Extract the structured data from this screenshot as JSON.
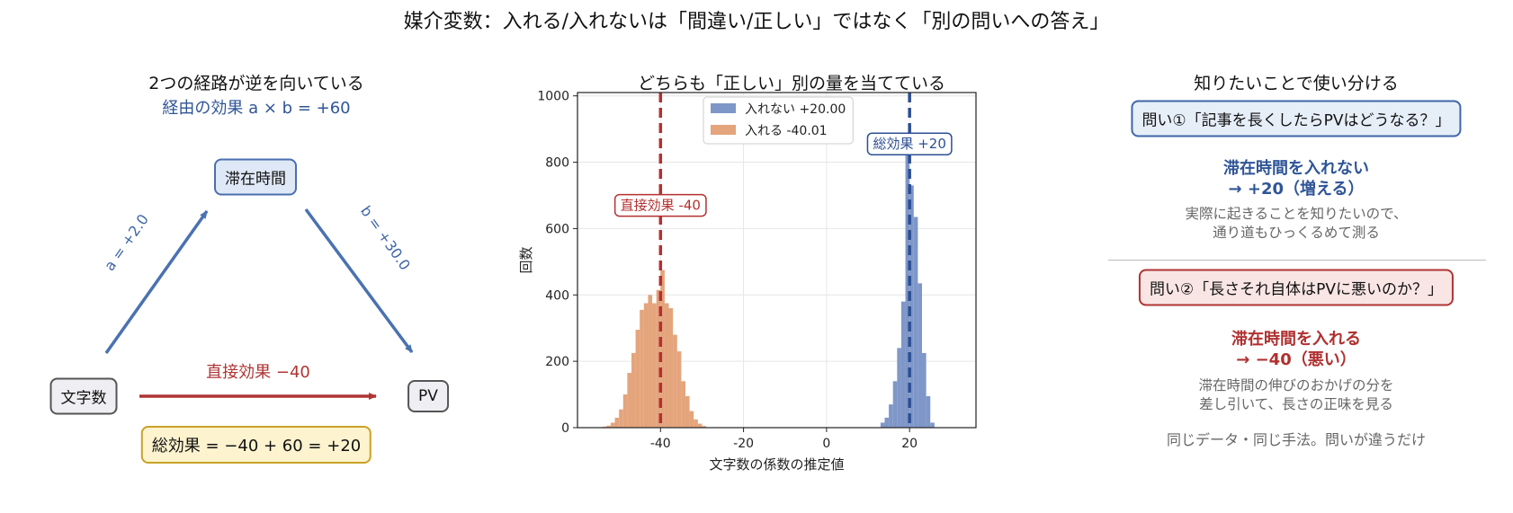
{
  "title": "媒介変数：入れる/入れないは「間違い/正しい」ではなく「別の問いへの答え」",
  "left": {
    "title": "2つの経路が逆を向いている",
    "subtitle": "経由の効果 a × b = +60",
    "node_mediator": "滞在時間",
    "node_x": "文字数",
    "node_y": "PV",
    "path_a": "a = +2.0",
    "path_b": "b = +30.0",
    "direct": "直接効果 −40",
    "total": "総効果 = −40 + 60 = +20",
    "colors": {
      "path": "#4a72b0",
      "direct": "#b03434"
    }
  },
  "chart_data": {
    "type": "histogram",
    "title": "どちらも「正しい」別の量を当てている",
    "xlabel": "文字数の係数の推定値",
    "ylabel": "回数",
    "xlim": [
      -60,
      36
    ],
    "ylim": [
      0,
      1010
    ],
    "xticks": [
      -40,
      -20,
      0,
      20
    ],
    "yticks": [
      0,
      200,
      400,
      600,
      800,
      1000
    ],
    "grid": true,
    "legend_position": "top-center",
    "bin_width": 1,
    "series": [
      {
        "name": "入れない  +20.00",
        "color": "#7f97c8",
        "bins": [
          {
            "x0": 13,
            "count": 15
          },
          {
            "x0": 14,
            "count": 30
          },
          {
            "x0": 15,
            "count": 70
          },
          {
            "x0": 16,
            "count": 140
          },
          {
            "x0": 17,
            "count": 240
          },
          {
            "x0": 18,
            "count": 380
          },
          {
            "x0": 19,
            "count": 865
          },
          {
            "x0": 20,
            "count": 730
          },
          {
            "x0": 21,
            "count": 635
          },
          {
            "x0": 22,
            "count": 435
          },
          {
            "x0": 23,
            "count": 225
          },
          {
            "x0": 24,
            "count": 95
          },
          {
            "x0": 25,
            "count": 15
          }
        ]
      },
      {
        "name": "入れる   -40.01",
        "color": "#e4a47c",
        "bins": [
          {
            "x0": -54,
            "count": 3
          },
          {
            "x0": -53,
            "count": 6
          },
          {
            "x0": -52,
            "count": 15
          },
          {
            "x0": -51,
            "count": 30
          },
          {
            "x0": -50,
            "count": 55
          },
          {
            "x0": -49,
            "count": 100
          },
          {
            "x0": -48,
            "count": 165
          },
          {
            "x0": -47,
            "count": 225
          },
          {
            "x0": -46,
            "count": 295
          },
          {
            "x0": -45,
            "count": 355
          },
          {
            "x0": -44,
            "count": 375
          },
          {
            "x0": -43,
            "count": 400
          },
          {
            "x0": -42,
            "count": 375
          },
          {
            "x0": -41,
            "count": 415
          },
          {
            "x0": -40,
            "count": 475
          },
          {
            "x0": -39,
            "count": 375
          },
          {
            "x0": -38,
            "count": 360
          },
          {
            "x0": -37,
            "count": 280
          },
          {
            "x0": -36,
            "count": 230
          },
          {
            "x0": -35,
            "count": 140
          },
          {
            "x0": -34,
            "count": 95
          },
          {
            "x0": -33,
            "count": 50
          },
          {
            "x0": -32,
            "count": 25
          },
          {
            "x0": -31,
            "count": 12
          },
          {
            "x0": -30,
            "count": 5
          }
        ]
      }
    ],
    "vlines": [
      {
        "x": -40,
        "color": "#b53030",
        "label": "直接効果 -40",
        "label_y": 670
      },
      {
        "x": 20,
        "color": "#2c4f93",
        "label": "総効果 +20",
        "label_y": 855
      }
    ]
  },
  "right": {
    "title": "知りたいことで使い分ける",
    "q1": "問い①「記事を長くしたらPVはどうなる？」",
    "a1_line1": "滞在時間を入れない",
    "a1_line2": "→ +20（増える）",
    "e1_line1": "実際に起きることを知りたいので、",
    "e1_line2": "通り道もひっくるめて測る",
    "q2": "問い②「長さそれ自体はPVに悪いのか？」",
    "a2_line1": "滞在時間を入れる",
    "a2_line2": "→ −40（悪い）",
    "e2_line1": "滞在時間の伸びのおかげの分を",
    "e2_line2": "差し引いて、長さの正味を見る",
    "footer": "同じデータ・同じ手法。問いが違うだけ"
  }
}
